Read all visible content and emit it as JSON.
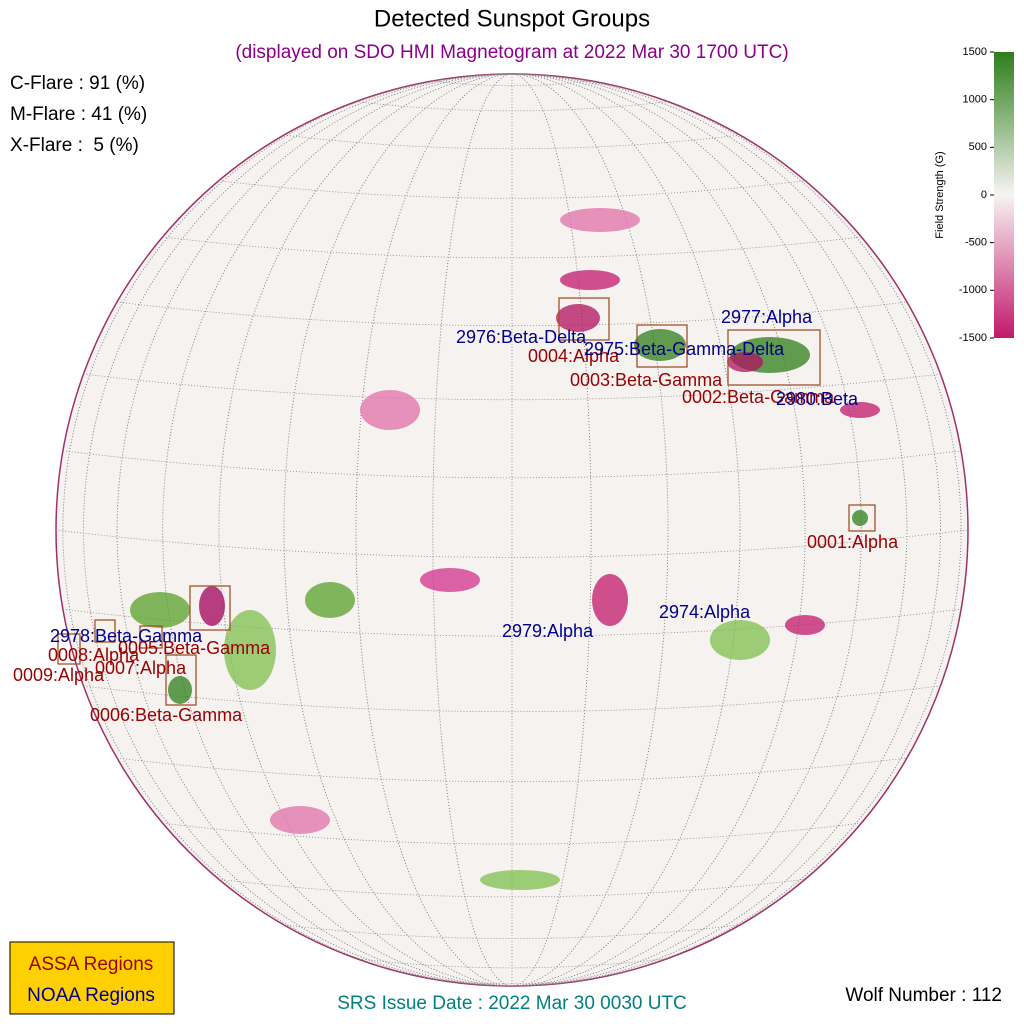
{
  "header": {
    "title": "Detected Sunspot Groups",
    "subtitle": "(displayed on SDO HMI Magnetogram at 2022 Mar 30 1700 UTC)"
  },
  "flare_probabilities": [
    "C-Flare : 91 (%)",
    "M-Flare : 41 (%)",
    "X-Flare :  5 (%)"
  ],
  "colorbar": {
    "label": "Field Strength (G)",
    "lim": [
      -1500,
      1500
    ],
    "ticks": [
      1500,
      1000,
      500,
      0,
      -500,
      -1000,
      -1500
    ],
    "colors": [
      "#c2186b",
      "#f7f4f2",
      "#2e7d1a"
    ]
  },
  "assa_regions": [
    "0004:Alpha",
    "0003:Beta-Gamma",
    "0002:Beta-Gamma",
    "0001:Alpha",
    "0005:Beta-Gamma",
    "0008:Alpha",
    "0007:Alpha",
    "0009:Alpha",
    "0006:Beta-Gamma"
  ],
  "noaa_regions": [
    "2976:Beta-Delta",
    "2975:Beta-Gamma-Delta",
    "2977:Alpha",
    "2980:Beta",
    "2974:Alpha",
    "2979:Alpha",
    "2978:Beta-Gamma"
  ],
  "legend": [
    {
      "label": "ASSA Regions",
      "color": "#9a0000"
    },
    {
      "label": "NOAA Regions",
      "color": "#00008b"
    }
  ],
  "footer": {
    "srs": "SRS Issue Date : 2022 Mar 30 0030 UTC",
    "wolf": "Wolf Number : 112"
  }
}
